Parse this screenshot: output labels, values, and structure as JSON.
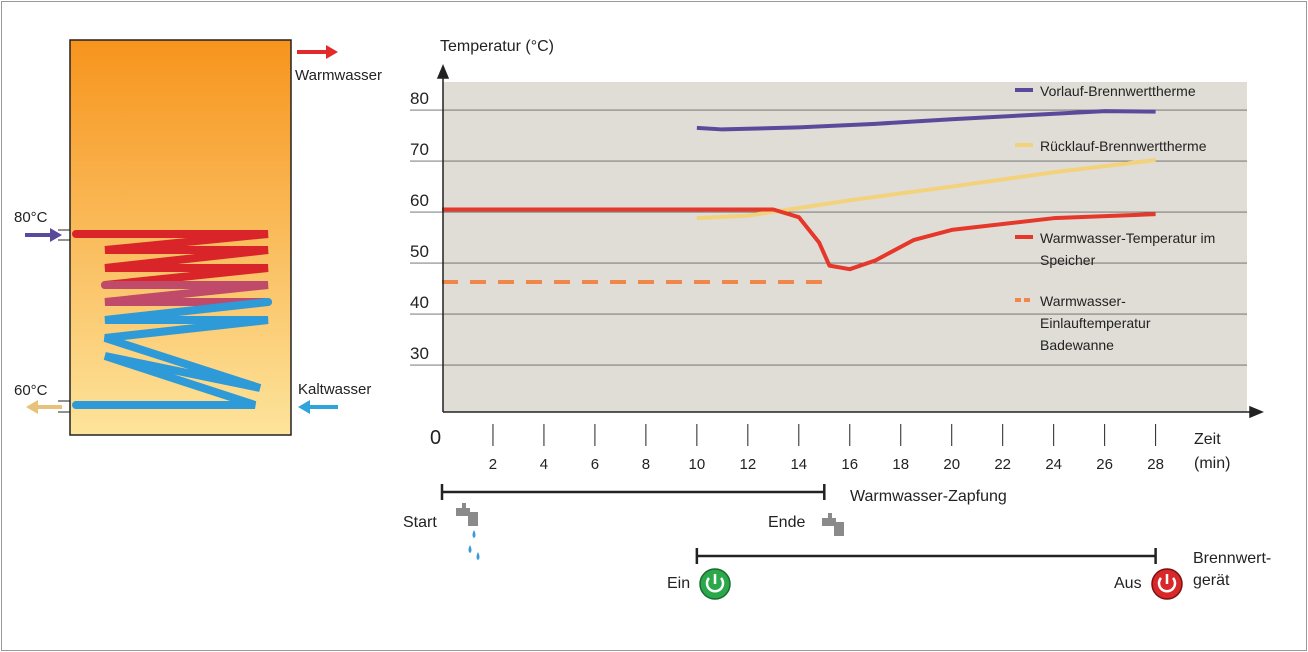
{
  "tank": {
    "hot_out": "Warmwasser",
    "cold_in": "Kaltwasser",
    "flow_in": "80°C",
    "return_out": "60°C"
  },
  "chart_data": {
    "type": "line",
    "y_label": "Temperatur (°C)",
    "x_label": "Zeit (min)",
    "xlim": [
      0,
      31.9
    ],
    "ylim": [
      20.8,
      85.5
    ],
    "xticks": [
      0,
      2,
      4,
      6,
      8,
      10,
      12,
      14,
      16,
      18,
      20,
      22,
      24,
      26,
      28
    ],
    "yticks": [
      30,
      40,
      50,
      60,
      70,
      80
    ],
    "grid": true,
    "series": [
      {
        "name": "Vorlauf-Brennwerttherme",
        "color": "#5a4a9c",
        "dashed": false,
        "x": [
          10,
          11,
          14,
          17,
          20,
          23,
          26,
          28
        ],
        "values": [
          76.5,
          76.2,
          76.6,
          77.3,
          78.2,
          79,
          79.8,
          79.7
        ]
      },
      {
        "name": "Rücklauf-Brennwerttherme",
        "color": "#f3d27c",
        "dashed": false,
        "x": [
          10,
          12,
          14,
          16,
          20,
          24,
          28
        ],
        "values": [
          58.8,
          59.3,
          60.8,
          62.3,
          65,
          67.8,
          70.2
        ]
      },
      {
        "name": "Warmwasser-Temperatur im Speicher",
        "color": "#e6372b",
        "dashed": false,
        "x": [
          0,
          13,
          14,
          14.8,
          15.2,
          16,
          17,
          18.5,
          20,
          24,
          28
        ],
        "values": [
          60.5,
          60.5,
          59,
          54,
          49.5,
          48.8,
          50.5,
          54.5,
          56.5,
          58.8,
          59.6
        ]
      },
      {
        "name": "Warmwasser-Einlauftemperatur Badewanne",
        "color": "#f0864a",
        "dashed": true,
        "x": [
          0,
          15
        ],
        "values": [
          46.3,
          46.3
        ]
      }
    ]
  },
  "timeline": {
    "tapping": {
      "label": "Warmwasser-Zapfung",
      "start_label": "Start",
      "end_label": "Ende",
      "from": 0,
      "to": 15
    },
    "boiler": {
      "label": "Brennwert-gerät",
      "start_label": "Ein",
      "end_label": "Aus",
      "from": 10,
      "to": 28
    }
  }
}
